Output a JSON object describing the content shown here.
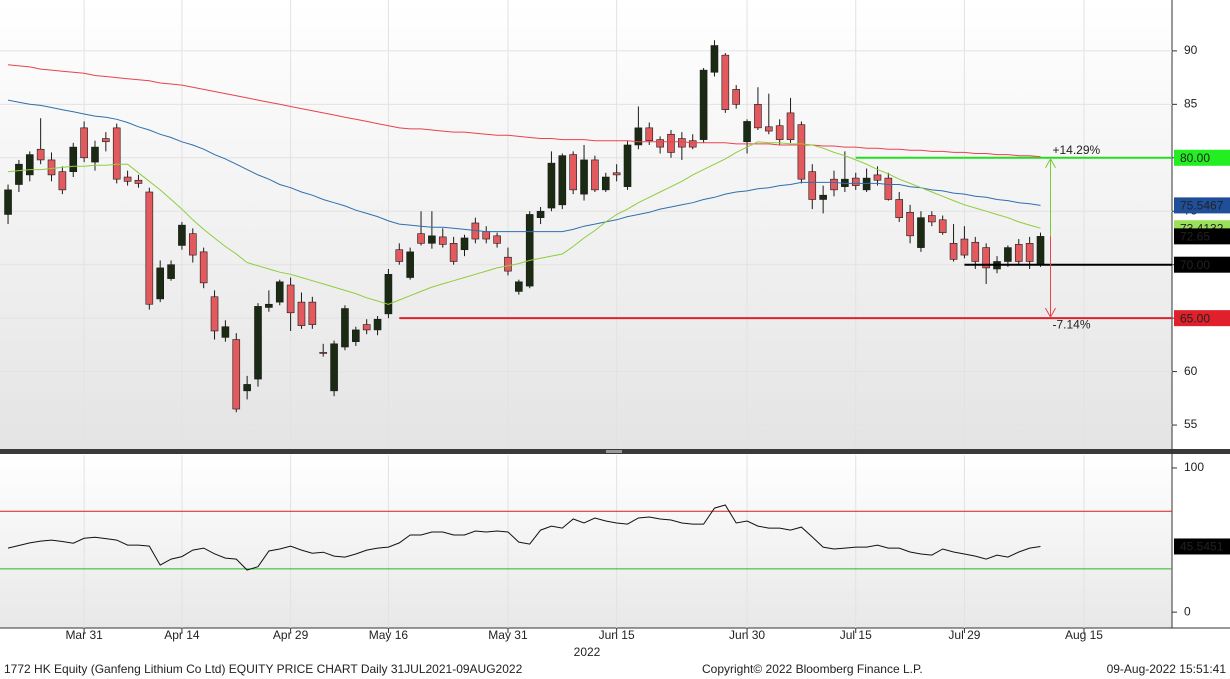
{
  "chart_data": [
    {
      "type": "candlestick",
      "xlim": [
        -0.74,
        107.1
      ],
      "xticks": [
        {
          "value": 7,
          "label": "Mar 31"
        },
        {
          "value": 16,
          "label": "Apr 14"
        },
        {
          "value": 26,
          "label": "Apr 29"
        },
        {
          "value": 35,
          "label": "May 16"
        },
        {
          "value": 46,
          "label": "May 31"
        },
        {
          "value": 56,
          "label": "Jun 15"
        },
        {
          "value": 68,
          "label": "Jun 30"
        },
        {
          "value": 78,
          "label": "Jul 15"
        },
        {
          "value": 88,
          "label": "Jul 29"
        },
        {
          "value": 99,
          "label": "Aug 15"
        }
      ],
      "xlabel": "2022",
      "ylim": [
        52.76,
        94.76
      ],
      "yticks": [
        55,
        60,
        65,
        70,
        75,
        80,
        85,
        90
      ],
      "grid": true,
      "up_color": "#1b2a12",
      "down_color": "#e35a5e",
      "open": [
        74.7,
        77.5,
        78.4,
        80.8,
        79.8,
        78.7,
        78.7,
        82.8,
        79.6,
        81.8,
        82.8,
        78.2,
        77.9,
        76.8,
        66.8,
        68.7,
        71.8,
        72.9,
        71.2,
        67.0,
        63.2,
        63.0,
        58.2,
        59.3,
        66.0,
        66.5,
        68.1,
        66.5,
        66.5,
        61.8,
        58.2,
        62.3,
        62.8,
        64.4,
        63.9,
        65.4,
        71.4,
        68.8,
        72.9,
        72.0,
        72.6,
        72.0,
        71.4,
        73.9,
        73.1,
        72.7,
        70.7,
        67.5,
        68.0,
        74.4,
        75.3,
        75.6,
        80.3,
        76.6,
        79.8,
        77.0,
        78.6,
        77.3,
        81.2,
        82.8,
        81.7,
        82.2,
        81.8,
        81.6,
        81.7,
        88.0,
        89.6,
        86.4,
        81.5,
        85.0,
        82.9,
        83.0,
        84.2,
        83.1,
        78.7,
        76.1,
        78.0,
        77.3,
        78.1,
        77.0,
        78.4,
        78.1,
        76.1,
        74.9,
        71.6,
        74.6,
        74.2,
        72.0,
        72.4,
        72.1,
        71.6,
        69.6,
        70.3,
        71.9,
        72.0,
        70.0
      ],
      "high": [
        77.5,
        79.8,
        80.6,
        83.7,
        80.5,
        79.2,
        81.4,
        83.4,
        81.6,
        82.4,
        83.2,
        78.8,
        78.4,
        77.2,
        70.4,
        70.4,
        74.0,
        73.4,
        71.6,
        67.6,
        64.8,
        63.6,
        59.6,
        66.4,
        67.6,
        68.6,
        68.8,
        67.4,
        67.0,
        62.6,
        62.9,
        66.2,
        64.2,
        64.9,
        65.2,
        69.6,
        72.0,
        71.6,
        75.0,
        75.0,
        73.4,
        72.6,
        72.8,
        74.4,
        73.6,
        73.0,
        71.6,
        68.6,
        75.0,
        75.4,
        80.6,
        80.4,
        80.6,
        81.2,
        80.2,
        78.6,
        79.4,
        81.6,
        84.8,
        83.3,
        82.0,
        82.6,
        82.4,
        82.2,
        88.4,
        91.0,
        89.8,
        86.8,
        83.6,
        86.6,
        86.0,
        83.6,
        85.6,
        83.4,
        79.4,
        77.4,
        78.8,
        80.6,
        78.6,
        79.0,
        79.2,
        78.6,
        76.8,
        75.6,
        75.0,
        75.0,
        74.6,
        73.8,
        73.6,
        72.6,
        72.0,
        70.8,
        71.8,
        72.4,
        72.6,
        73.0
      ],
      "low": [
        73.8,
        76.8,
        77.8,
        79.4,
        77.8,
        76.6,
        78.2,
        79.6,
        78.8,
        80.6,
        77.6,
        77.4,
        77.2,
        65.8,
        66.5,
        68.5,
        71.4,
        70.2,
        67.8,
        63.0,
        62.8,
        56.2,
        57.4,
        58.6,
        65.6,
        66.2,
        63.8,
        64.0,
        64.0,
        61.4,
        57.7,
        62.0,
        62.4,
        63.5,
        63.4,
        65.0,
        70.0,
        68.6,
        71.8,
        71.5,
        71.6,
        70.0,
        70.8,
        72.0,
        72.0,
        71.6,
        69.0,
        67.2,
        67.8,
        73.8,
        75.0,
        75.2,
        76.6,
        76.0,
        76.8,
        76.8,
        77.8,
        77.0,
        80.8,
        81.2,
        80.4,
        80.0,
        79.8,
        80.8,
        81.4,
        87.6,
        84.2,
        84.6,
        80.4,
        82.6,
        82.2,
        81.2,
        81.4,
        77.6,
        75.2,
        74.8,
        76.4,
        76.8,
        77.0,
        76.8,
        77.4,
        76.0,
        74.0,
        72.0,
        71.2,
        73.6,
        72.8,
        70.3,
        70.6,
        69.6,
        68.2,
        69.2,
        69.8,
        70.0,
        69.6,
        69.8
      ],
      "close": [
        77.0,
        79.4,
        80.3,
        79.8,
        78.4,
        77.0,
        81.0,
        80.0,
        81.0,
        81.5,
        78.0,
        77.8,
        77.6,
        66.3,
        69.7,
        70.0,
        73.7,
        70.9,
        68.3,
        63.8,
        64.2,
        56.5,
        58.8,
        66.1,
        66.3,
        68.4,
        65.5,
        64.3,
        64.4,
        61.7,
        62.6,
        65.9,
        63.9,
        63.9,
        64.9,
        69.1,
        70.3,
        71.2,
        72.0,
        72.7,
        71.9,
        70.3,
        72.5,
        72.4,
        72.4,
        72.0,
        69.4,
        68.4,
        74.7,
        75.0,
        79.5,
        80.2,
        77.0,
        79.8,
        77.0,
        78.2,
        78.4,
        81.2,
        82.8,
        81.6,
        81.0,
        80.5,
        81.0,
        81.0,
        88.2,
        90.5,
        84.5,
        85.0,
        83.4,
        82.8,
        82.5,
        81.7,
        81.7,
        78.0,
        76.1,
        76.5,
        77.0,
        78.0,
        77.4,
        78.1,
        77.9,
        76.1,
        74.4,
        72.7,
        74.4,
        74.0,
        73.0,
        70.5,
        70.9,
        70.3,
        69.7,
        70.3,
        71.6,
        70.3,
        70.3,
        72.65
      ],
      "series": [
        {
          "color": "#e8434e",
          "values": [
            88.7,
            88.6,
            88.5,
            88.3,
            88.2,
            88.1,
            88.0,
            87.9,
            87.7,
            87.6,
            87.5,
            87.4,
            87.3,
            87.2,
            87.0,
            86.9,
            86.8,
            86.6,
            86.4,
            86.2,
            86.0,
            85.8,
            85.6,
            85.4,
            85.2,
            85.0,
            84.8,
            84.6,
            84.4,
            84.2,
            84.0,
            83.8,
            83.6,
            83.4,
            83.2,
            83.0,
            82.8,
            82.7,
            82.7,
            82.6,
            82.5,
            82.4,
            82.4,
            82.3,
            82.2,
            82.1,
            82.1,
            82.0,
            81.9,
            81.8,
            81.8,
            81.7,
            81.7,
            81.7,
            81.6,
            81.6,
            81.6,
            81.6,
            81.5,
            81.5,
            81.5,
            81.5,
            81.5,
            81.4,
            81.4,
            81.4,
            81.4,
            81.3,
            81.3,
            81.3,
            81.3,
            81.2,
            81.2,
            81.2,
            81.2,
            81.1,
            81.1,
            81.0,
            81.0,
            80.9,
            80.9,
            80.8,
            80.8,
            80.7,
            80.7,
            80.6,
            80.6,
            80.5,
            80.5,
            80.4,
            80.4,
            80.3,
            80.3,
            80.2,
            80.2,
            80.1
          ]
        },
        {
          "color": "#2f6fae",
          "show_last": true,
          "box_color": "#1f4f9a",
          "box_text": "#ffffff",
          "values": [
            85.4,
            85.2,
            85.0,
            84.9,
            84.7,
            84.5,
            84.3,
            84.1,
            83.9,
            83.8,
            83.6,
            83.3,
            82.9,
            82.6,
            82.2,
            81.9,
            81.5,
            81.2,
            80.8,
            80.3,
            79.9,
            79.4,
            78.9,
            78.4,
            78.0,
            77.5,
            77.2,
            76.8,
            76.5,
            76.1,
            75.8,
            75.5,
            75.1,
            74.8,
            74.5,
            74.1,
            73.8,
            73.7,
            73.6,
            73.5,
            73.5,
            73.4,
            73.3,
            73.2,
            73.1,
            73.1,
            73.1,
            73.1,
            73.1,
            73.1,
            73.1,
            73.1,
            73.3,
            73.6,
            73.8,
            74.0,
            74.2,
            74.5,
            74.7,
            74.9,
            75.2,
            75.4,
            75.6,
            75.8,
            76.1,
            76.3,
            76.6,
            76.8,
            76.9,
            77.1,
            77.2,
            77.4,
            77.5,
            77.7,
            77.7,
            77.7,
            77.7,
            77.6,
            77.6,
            77.6,
            77.6,
            77.5,
            77.5,
            77.3,
            77.2,
            77.0,
            76.9,
            76.7,
            76.6,
            76.4,
            76.3,
            76.1,
            76.0,
            75.8,
            75.7,
            75.5467
          ]
        },
        {
          "color": "#8fcd3c",
          "show_last": true,
          "box_color": "#9be05a",
          "box_text": "#1b2a12",
          "values": [
            78.7,
            78.8,
            78.9,
            78.9,
            79.0,
            79.1,
            79.2,
            79.2,
            79.3,
            79.3,
            79.4,
            79.4,
            78.6,
            77.8,
            77.0,
            76.1,
            75.2,
            74.2,
            73.3,
            72.5,
            71.7,
            71.0,
            70.2,
            69.9,
            69.6,
            69.3,
            69.1,
            68.8,
            68.5,
            68.2,
            67.9,
            67.6,
            67.3,
            66.9,
            66.6,
            66.3,
            66.7,
            67.1,
            67.5,
            67.9,
            68.2,
            68.5,
            68.8,
            69.1,
            69.4,
            69.7,
            69.9,
            70.1,
            70.4,
            70.6,
            70.8,
            71.0,
            71.7,
            72.5,
            73.2,
            74.0,
            74.7,
            75.2,
            75.8,
            76.3,
            76.8,
            77.3,
            77.8,
            78.4,
            78.9,
            79.4,
            79.9,
            80.5,
            81.0,
            81.5,
            81.4,
            81.4,
            81.3,
            81.3,
            81.2,
            80.9,
            80.5,
            80.2,
            79.8,
            79.4,
            78.9,
            78.5,
            78.0,
            77.6,
            77.2,
            76.8,
            76.4,
            76.0,
            75.6,
            75.3,
            75.0,
            74.7,
            74.4,
            74.0,
            73.7,
            73.4132
          ]
        }
      ],
      "levels": [
        {
          "value": 80,
          "label": "80.00",
          "color": "#22dd22",
          "box_color": "#22ee22",
          "change": "+14.29%",
          "change_color": "#77cc33"
        },
        {
          "value": 70,
          "label": "70.00",
          "color": "#000000",
          "box_color": "#000000"
        },
        {
          "value": 65,
          "label": "65.00",
          "color": "#e0202a",
          "box_color": "#e0202a",
          "change": "-7.14%",
          "change_color": "#e8434e"
        }
      ]
    },
    {
      "type": "line",
      "ylim": [
        -11,
        109
      ],
      "yticks": [
        0,
        100
      ],
      "series": [
        {
          "color": "#111111",
          "show_last": true,
          "box_color": "#000000",
          "box_text": "#ffffff",
          "values": [
            44.4,
            46.2,
            48.0,
            49.3,
            50.0,
            49.0,
            47.8,
            51.2,
            52.0,
            51.0,
            50.0,
            46.5,
            46.5,
            45.8,
            32.6,
            36.8,
            38.5,
            43.0,
            44.4,
            40.5,
            37.5,
            36.8,
            29.2,
            31.5,
            42.4,
            43.8,
            45.8,
            43.0,
            40.9,
            41.6,
            38.9,
            38.2,
            40.3,
            43.0,
            44.4,
            45.1,
            48.0,
            53.5,
            53.5,
            55.6,
            55.6,
            53.5,
            53.5,
            56.3,
            55.6,
            56.3,
            55.6,
            48.6,
            47.2,
            56.9,
            59.7,
            58.3,
            64.6,
            61.8,
            65.3,
            63.2,
            61.8,
            61.1,
            65.3,
            66.0,
            64.6,
            63.9,
            61.8,
            61.1,
            61.1,
            72.2,
            74.3,
            61.8,
            63.2,
            59.7,
            58.3,
            58.3,
            56.9,
            59.0,
            52.1,
            45.1,
            43.8,
            44.4,
            45.1,
            45.1,
            46.5,
            44.4,
            44.4,
            41.7,
            40.3,
            39.6,
            43.8,
            41.7,
            40.3,
            38.9,
            36.8,
            39.6,
            38.2,
            41.7,
            44.4,
            45.5451
          ]
        }
      ],
      "levels": [
        {
          "value": 70,
          "color": "#d02020"
        },
        {
          "value": 30,
          "color": "#22bb22"
        }
      ]
    }
  ],
  "footer": {
    "left": "1772 HK Equity (Ganfeng Lithium Co Ltd) EQUITY PRICE CHART  Daily 31JUL2021-09AUG2022",
    "center": "Copyright© 2022 Bloomberg Finance L.P.",
    "right": "09-Aug-2022 15:51:41"
  }
}
